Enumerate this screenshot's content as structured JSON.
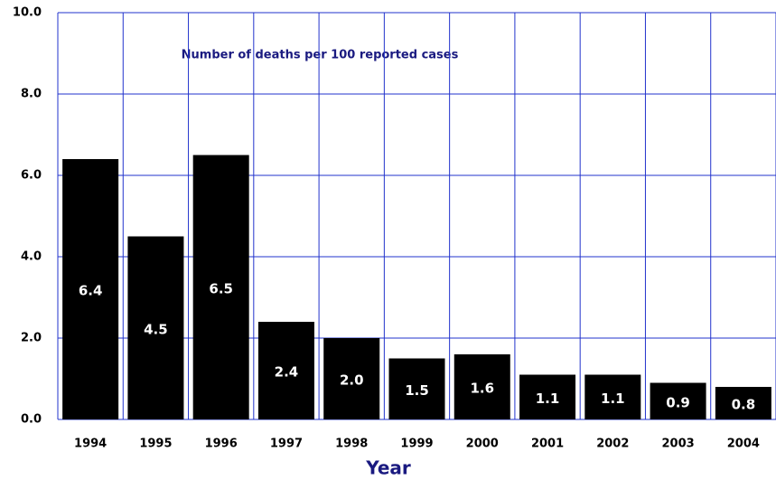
{
  "chart_data": {
    "type": "bar",
    "annotation": "Number of deaths per 100 reported cases",
    "x_label": "Year",
    "categories": [
      "1994",
      "1995",
      "1996",
      "1997",
      "1998",
      "1999",
      "2000",
      "2001",
      "2002",
      "2003",
      "2004"
    ],
    "values": [
      6.4,
      4.5,
      6.5,
      2.4,
      2.0,
      1.5,
      1.6,
      1.1,
      1.1,
      0.9,
      0.8
    ],
    "value_labels": [
      "6.4",
      "4.5",
      "6.5",
      "2.4",
      "2.0",
      "1.5",
      "1.6",
      "1.1",
      "1.1",
      "0.9",
      "0.8"
    ],
    "color": "#000000",
    "grid_color": "#2233cc",
    "ylim": [
      0,
      10
    ],
    "yticks": [
      {
        "value": 0,
        "label": "0.0"
      },
      {
        "value": 2,
        "label": "2.0"
      },
      {
        "value": 4,
        "label": "4.0"
      },
      {
        "value": 6,
        "label": "6.0"
      },
      {
        "value": 8,
        "label": "8.0"
      },
      {
        "value": 10,
        "label": "10.0"
      }
    ],
    "grid": true
  }
}
